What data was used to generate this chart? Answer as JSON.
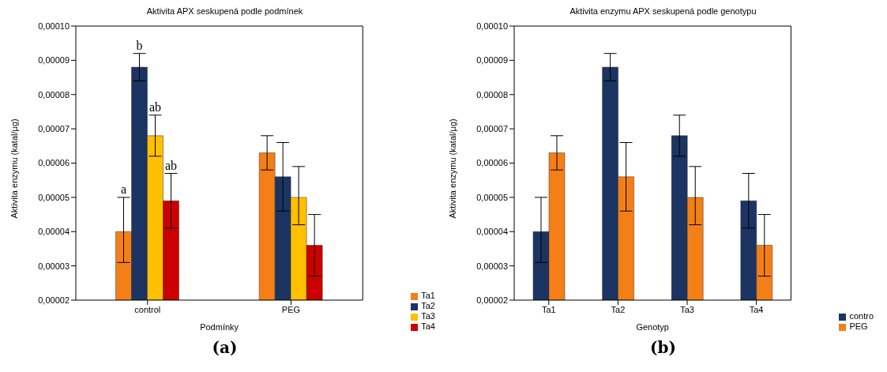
{
  "chart_data": [
    {
      "type": "bar",
      "title": "Aktivita APX seskupená podle podmínek",
      "xlabel": "Podmínky",
      "ylabel": "Aktivita enzymu (katal/µg)",
      "categories": [
        "control",
        "PEG"
      ],
      "series": [
        {
          "name": "Ta1",
          "color": "#f57f17",
          "values": [
            4e-05,
            6.3e-05
          ],
          "errors": [
            [
              3.1e-05,
              5e-05
            ],
            [
              5.8e-05,
              6.8e-05
            ]
          ]
        },
        {
          "name": "Ta2",
          "color": "#1b3461",
          "values": [
            8.8e-05,
            5.6e-05
          ],
          "errors": [
            [
              8.4e-05,
              9.2e-05
            ],
            [
              4.6e-05,
              6.6e-05
            ]
          ]
        },
        {
          "name": "Ta3",
          "color": "#ffc000",
          "values": [
            6.8e-05,
            5e-05
          ],
          "errors": [
            [
              6.2e-05,
              7.4e-05
            ],
            [
              4.2e-05,
              5.9e-05
            ]
          ]
        },
        {
          "name": "Ta4",
          "color": "#cc0000",
          "values": [
            4.9e-05,
            3.6e-05
          ],
          "errors": [
            [
              4.1e-05,
              5.7e-05
            ],
            [
              2.7e-05,
              4.5e-05
            ]
          ]
        }
      ],
      "ylim": [
        2e-05,
        0.0001
      ],
      "yticks": [
        {
          "value": 2e-05,
          "label": "0,00002"
        },
        {
          "value": 3e-05,
          "label": "0,00003"
        },
        {
          "value": 4e-05,
          "label": "0,00004"
        },
        {
          "value": 5e-05,
          "label": "0,00005"
        },
        {
          "value": 6e-05,
          "label": "0,00006"
        },
        {
          "value": 7e-05,
          "label": "0,00007"
        },
        {
          "value": 8e-05,
          "label": "0,00008"
        },
        {
          "value": 9e-05,
          "label": "0,00009"
        },
        {
          "value": 0.0001,
          "label": "0,00010"
        }
      ],
      "legend": "bottom right",
      "annotations": [
        {
          "text": "a",
          "x": "control",
          "y": 5e-05
        },
        {
          "text": "b",
          "x": "control",
          "y": 9.2e-05
        },
        {
          "text": "ab",
          "x": "control",
          "y": 7.4e-05
        },
        {
          "text": "ab",
          "x": "control",
          "y": 5.7e-05
        },
        "(a)"
      ]
    },
    {
      "type": "bar",
      "title": "Aktivita enzymu APX seskupená podle genotypu",
      "xlabel": "Genotyp",
      "ylabel": "Aktivita enzymu (katal/µg)",
      "categories": [
        "Ta1",
        "Ta2",
        "Ta3",
        "Ta4"
      ],
      "series": [
        {
          "name": "contro",
          "color": "#1b3461",
          "values": [
            4e-05,
            8.8e-05,
            6.8e-05,
            4.9e-05
          ],
          "errors": [
            [
              3.1e-05,
              5e-05
            ],
            [
              8.4e-05,
              9.2e-05
            ],
            [
              6.2e-05,
              7.4e-05
            ],
            [
              4.1e-05,
              5.7e-05
            ]
          ]
        },
        {
          "name": "PEG",
          "color": "#f57f17",
          "values": [
            6.3e-05,
            5.6e-05,
            5e-05,
            3.6e-05
          ],
          "errors": [
            [
              5.8e-05,
              6.8e-05
            ],
            [
              4.6e-05,
              6.6e-05
            ],
            [
              4.2e-05,
              5.9e-05
            ],
            [
              2.7e-05,
              4.5e-05
            ]
          ]
        }
      ],
      "ylim": [
        2e-05,
        0.0001
      ],
      "yticks": [
        {
          "value": 2e-05,
          "label": "0,00002"
        },
        {
          "value": 3e-05,
          "label": "0,00003"
        },
        {
          "value": 4e-05,
          "label": "0,00004"
        },
        {
          "value": 5e-05,
          "label": "0,00005"
        },
        {
          "value": 6e-05,
          "label": "0,00006"
        },
        {
          "value": 7e-05,
          "label": "0,00007"
        },
        {
          "value": 8e-05,
          "label": "0,00008"
        },
        {
          "value": 9e-05,
          "label": "0,00009"
        },
        {
          "value": 0.0001,
          "label": "0,00010"
        }
      ],
      "legend": "bottom right",
      "annotations": [
        "(b)"
      ]
    }
  ]
}
